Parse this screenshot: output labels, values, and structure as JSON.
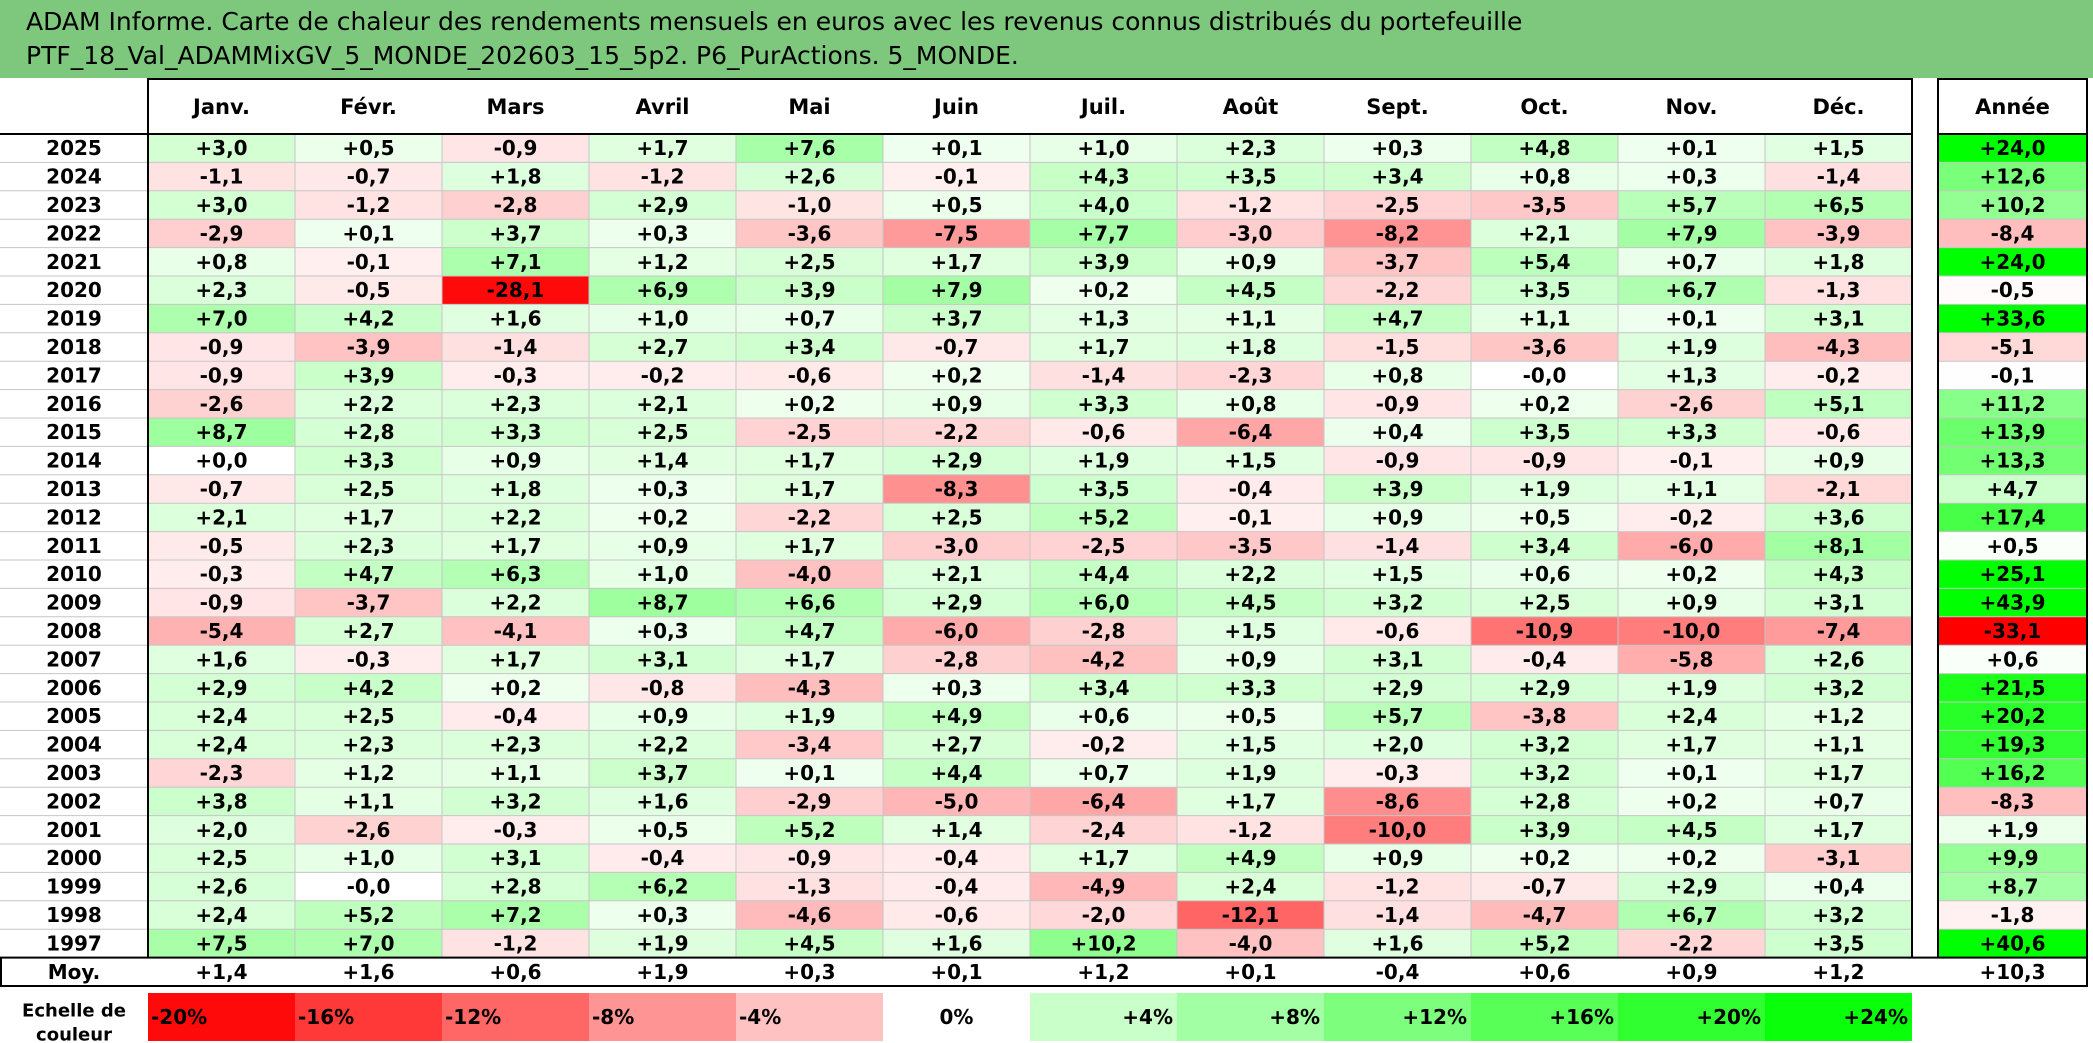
{
  "title": {
    "line1": "ADAM Informe. Carte de chaleur des rendements mensuels en euros avec les revenus connus distribués du portefeuille",
    "line2": "PTF_18_Val_ADAMMixGV_5_MONDE_202603_15_5p2. P6_PurActions. 5_MONDE."
  },
  "colors": {
    "title_bg": "#7ec87e",
    "positive_max": "#00ff00",
    "negative_max": "#ff0000",
    "neutral": "#ffffff"
  },
  "chart_data": {
    "type": "heatmap",
    "title": "ADAM Informe. Carte de chaleur des rendements mensuels en euros avec les revenus connus distribués du portefeuille PTF_18_Val_ADAMMixGV_5_MONDE_202603_15_5p2. P6_PurActions. 5_MONDE.",
    "columns": [
      "Janv.",
      "Févr.",
      "Mars",
      "Avril",
      "Mai",
      "Juin",
      "Juil.",
      "Août",
      "Sept.",
      "Oct.",
      "Nov.",
      "Déc."
    ],
    "year_header": "Année",
    "rows": [
      {
        "year": "2025",
        "values": [
          "+3,0",
          "+0,5",
          "-0,9",
          "+1,7",
          "+7,6",
          "+0,1",
          "+1,0",
          "+2,3",
          "+0,3",
          "+4,8",
          "+0,1",
          "+1,5"
        ],
        "annual": "+24,0"
      },
      {
        "year": "2024",
        "values": [
          "-1,1",
          "-0,7",
          "+1,8",
          "-1,2",
          "+2,6",
          "-0,1",
          "+4,3",
          "+3,5",
          "+3,4",
          "+0,8",
          "+0,3",
          "-1,4"
        ],
        "annual": "+12,6"
      },
      {
        "year": "2023",
        "values": [
          "+3,0",
          "-1,2",
          "-2,8",
          "+2,9",
          "-1,0",
          "+0,5",
          "+4,0",
          "-1,2",
          "-2,5",
          "-3,5",
          "+5,7",
          "+6,5"
        ],
        "annual": "+10,2"
      },
      {
        "year": "2022",
        "values": [
          "-2,9",
          "+0,1",
          "+3,7",
          "+0,3",
          "-3,6",
          "-7,5",
          "+7,7",
          "-3,0",
          "-8,2",
          "+2,1",
          "+7,9",
          "-3,9"
        ],
        "annual": "-8,4"
      },
      {
        "year": "2021",
        "values": [
          "+0,8",
          "-0,1",
          "+7,1",
          "+1,2",
          "+2,5",
          "+1,7",
          "+3,9",
          "+0,9",
          "-3,7",
          "+5,4",
          "+0,7",
          "+1,8"
        ],
        "annual": "+24,0"
      },
      {
        "year": "2020",
        "values": [
          "+2,3",
          "-0,5",
          "-28,1",
          "+6,9",
          "+3,9",
          "+7,9",
          "+0,2",
          "+4,5",
          "-2,2",
          "+3,5",
          "+6,7",
          "-1,3"
        ],
        "annual": "-0,5"
      },
      {
        "year": "2019",
        "values": [
          "+7,0",
          "+4,2",
          "+1,6",
          "+1,0",
          "+0,7",
          "+3,7",
          "+1,3",
          "+1,1",
          "+4,7",
          "+1,1",
          "+0,1",
          "+3,1"
        ],
        "annual": "+33,6"
      },
      {
        "year": "2018",
        "values": [
          "-0,9",
          "-3,9",
          "-1,4",
          "+2,7",
          "+3,4",
          "-0,7",
          "+1,7",
          "+1,8",
          "-1,5",
          "-3,6",
          "+1,9",
          "-4,3"
        ],
        "annual": "-5,1"
      },
      {
        "year": "2017",
        "values": [
          "-0,9",
          "+3,9",
          "-0,3",
          "-0,2",
          "-0,6",
          "+0,2",
          "-1,4",
          "-2,3",
          "+0,8",
          "-0,0",
          "+1,3",
          "-0,2"
        ],
        "annual": "-0,1"
      },
      {
        "year": "2016",
        "values": [
          "-2,6",
          "+2,2",
          "+2,3",
          "+2,1",
          "+0,2",
          "+0,9",
          "+3,3",
          "+0,8",
          "-0,9",
          "+0,2",
          "-2,6",
          "+5,1"
        ],
        "annual": "+11,2"
      },
      {
        "year": "2015",
        "values": [
          "+8,7",
          "+2,8",
          "+3,3",
          "+2,5",
          "-2,5",
          "-2,2",
          "-0,6",
          "-6,4",
          "+0,4",
          "+3,5",
          "+3,3",
          "-0,6"
        ],
        "annual": "+13,9"
      },
      {
        "year": "2014",
        "values": [
          "+0,0",
          "+3,3",
          "+0,9",
          "+1,4",
          "+1,7",
          "+2,9",
          "+1,9",
          "+1,5",
          "-0,9",
          "-0,9",
          "-0,1",
          "+0,9"
        ],
        "annual": "+13,3"
      },
      {
        "year": "2013",
        "values": [
          "-0,7",
          "+2,5",
          "+1,8",
          "+0,3",
          "+1,7",
          "-8,3",
          "+3,5",
          "-0,4",
          "+3,9",
          "+1,9",
          "+1,1",
          "-2,1"
        ],
        "annual": "+4,7"
      },
      {
        "year": "2012",
        "values": [
          "+2,1",
          "+1,7",
          "+2,2",
          "+0,2",
          "-2,2",
          "+2,5",
          "+5,2",
          "-0,1",
          "+0,9",
          "+0,5",
          "-0,2",
          "+3,6"
        ],
        "annual": "+17,4"
      },
      {
        "year": "2011",
        "values": [
          "-0,5",
          "+2,3",
          "+1,7",
          "+0,9",
          "+1,7",
          "-3,0",
          "-2,5",
          "-3,5",
          "-1,4",
          "+3,4",
          "-6,0",
          "+8,1"
        ],
        "annual": "+0,5"
      },
      {
        "year": "2010",
        "values": [
          "-0,3",
          "+4,7",
          "+6,3",
          "+1,0",
          "-4,0",
          "+2,1",
          "+4,4",
          "+2,2",
          "+1,5",
          "+0,6",
          "+0,2",
          "+4,3"
        ],
        "annual": "+25,1"
      },
      {
        "year": "2009",
        "values": [
          "-0,9",
          "-3,7",
          "+2,2",
          "+8,7",
          "+6,6",
          "+2,9",
          "+6,0",
          "+4,5",
          "+3,2",
          "+2,5",
          "+0,9",
          "+3,1"
        ],
        "annual": "+43,9"
      },
      {
        "year": "2008",
        "values": [
          "-5,4",
          "+2,7",
          "-4,1",
          "+0,3",
          "+4,7",
          "-6,0",
          "-2,8",
          "+1,5",
          "-0,6",
          "-10,9",
          "-10,0",
          "-7,4"
        ],
        "annual": "-33,1"
      },
      {
        "year": "2007",
        "values": [
          "+1,6",
          "-0,3",
          "+1,7",
          "+3,1",
          "+1,7",
          "-2,8",
          "-4,2",
          "+0,9",
          "+3,1",
          "-0,4",
          "-5,8",
          "+2,6"
        ],
        "annual": "+0,6"
      },
      {
        "year": "2006",
        "values": [
          "+2,9",
          "+4,2",
          "+0,2",
          "-0,8",
          "-4,3",
          "+0,3",
          "+3,4",
          "+3,3",
          "+2,9",
          "+2,9",
          "+1,9",
          "+3,2"
        ],
        "annual": "+21,5"
      },
      {
        "year": "2005",
        "values": [
          "+2,4",
          "+2,5",
          "-0,4",
          "+0,9",
          "+1,9",
          "+4,9",
          "+0,6",
          "+0,5",
          "+5,7",
          "-3,8",
          "+2,4",
          "+1,2"
        ],
        "annual": "+20,2"
      },
      {
        "year": "2004",
        "values": [
          "+2,4",
          "+2,3",
          "+2,3",
          "+2,2",
          "-3,4",
          "+2,7",
          "-0,2",
          "+1,5",
          "+2,0",
          "+3,2",
          "+1,7",
          "+1,1"
        ],
        "annual": "+19,3"
      },
      {
        "year": "2003",
        "values": [
          "-2,3",
          "+1,2",
          "+1,1",
          "+3,7",
          "+0,1",
          "+4,4",
          "+0,7",
          "+1,9",
          "-0,3",
          "+3,2",
          "+0,1",
          "+1,7"
        ],
        "annual": "+16,2"
      },
      {
        "year": "2002",
        "values": [
          "+3,8",
          "+1,1",
          "+3,2",
          "+1,6",
          "-2,9",
          "-5,0",
          "-6,4",
          "+1,7",
          "-8,6",
          "+2,8",
          "+0,2",
          "+0,7"
        ],
        "annual": "-8,3"
      },
      {
        "year": "2001",
        "values": [
          "+2,0",
          "-2,6",
          "-0,3",
          "+0,5",
          "+5,2",
          "+1,4",
          "-2,4",
          "-1,2",
          "-10,0",
          "+3,9",
          "+4,5",
          "+1,7"
        ],
        "annual": "+1,9"
      },
      {
        "year": "2000",
        "values": [
          "+2,5",
          "+1,0",
          "+3,1",
          "-0,4",
          "-0,9",
          "-0,4",
          "+1,7",
          "+4,9",
          "+0,9",
          "+0,2",
          "+0,2",
          "-3,1"
        ],
        "annual": "+9,9"
      },
      {
        "year": "1999",
        "values": [
          "+2,6",
          "-0,0",
          "+2,8",
          "+6,2",
          "-1,3",
          "-0,4",
          "-4,9",
          "+2,4",
          "-1,2",
          "-0,7",
          "+2,9",
          "+0,4"
        ],
        "annual": "+8,7"
      },
      {
        "year": "1998",
        "values": [
          "+2,4",
          "+5,2",
          "+7,2",
          "+0,3",
          "-4,6",
          "-0,6",
          "-2,0",
          "-12,1",
          "-1,4",
          "-4,7",
          "+6,7",
          "+3,2"
        ],
        "annual": "-1,8"
      },
      {
        "year": "1997",
        "values": [
          "+7,5",
          "+7,0",
          "-1,2",
          "+1,9",
          "+4,5",
          "+1,6",
          "+10,2",
          "-4,0",
          "+1,6",
          "+5,2",
          "-2,2",
          "+3,5"
        ],
        "annual": "+40,6"
      }
    ],
    "average_row": {
      "label": "Moy.",
      "values": [
        "+1,4",
        "+1,6",
        "+0,6",
        "+1,9",
        "+0,3",
        "+0,1",
        "+1,2",
        "+0,1",
        "-0,4",
        "+0,6",
        "+0,9",
        "+1,2"
      ],
      "annual": "+10,3"
    },
    "scale": {
      "label_line1": "Echelle de",
      "label_line2": "couleur",
      "stops": [
        "-20%",
        "-16%",
        "-12%",
        "-8%",
        "-4%",
        "0%",
        "+4%",
        "+8%",
        "+12%",
        "+16%",
        "+20%",
        "+24%"
      ]
    }
  }
}
